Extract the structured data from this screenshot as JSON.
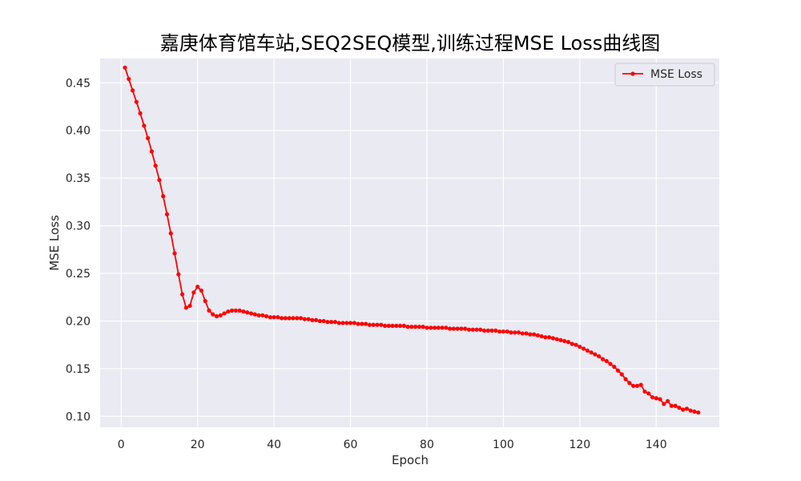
{
  "chart_data": {
    "type": "line",
    "title": "嘉庚体育馆车站,SEQ2SEQ模型,训练过程MSE Loss曲线图",
    "xlabel": "Epoch",
    "ylabel": "MSE Loss",
    "xlim": [
      -5.5,
      156.5
    ],
    "ylim": [
      0.0885,
      0.4755
    ],
    "xticks": [
      0,
      20,
      40,
      60,
      80,
      100,
      120,
      140
    ],
    "yticks": [
      0.1,
      0.15,
      0.2,
      0.25,
      0.3,
      0.35,
      0.4,
      0.45
    ],
    "xtick_labels": [
      "0",
      "20",
      "40",
      "60",
      "80",
      "100",
      "120",
      "140"
    ],
    "ytick_labels": [
      "0.10",
      "0.15",
      "0.20",
      "0.25",
      "0.30",
      "0.35",
      "0.40",
      "0.45"
    ],
    "grid": true,
    "legend_position": "top-right",
    "series": [
      {
        "name": "MSE Loss",
        "color": "#ff0000",
        "marker": "circle",
        "x": [
          1,
          2,
          3,
          4,
          5,
          6,
          7,
          8,
          9,
          10,
          11,
          12,
          13,
          14,
          15,
          16,
          17,
          18,
          19,
          20,
          21,
          22,
          23,
          24,
          25,
          26,
          27,
          28,
          29,
          30,
          31,
          32,
          33,
          34,
          35,
          36,
          37,
          38,
          39,
          40,
          41,
          42,
          43,
          44,
          45,
          46,
          47,
          48,
          49,
          50,
          51,
          52,
          53,
          54,
          55,
          56,
          57,
          58,
          59,
          60,
          61,
          62,
          63,
          64,
          65,
          66,
          67,
          68,
          69,
          70,
          71,
          72,
          73,
          74,
          75,
          76,
          77,
          78,
          79,
          80,
          81,
          82,
          83,
          84,
          85,
          86,
          87,
          88,
          89,
          90,
          91,
          92,
          93,
          94,
          95,
          96,
          97,
          98,
          99,
          100,
          101,
          102,
          103,
          104,
          105,
          106,
          107,
          108,
          109,
          110,
          111,
          112,
          113,
          114,
          115,
          116,
          117,
          118,
          119,
          120,
          121,
          122,
          123,
          124,
          125,
          126,
          127,
          128,
          129,
          130,
          131,
          132,
          133,
          134,
          135,
          136,
          137,
          138,
          139,
          140,
          141,
          142,
          143,
          144,
          145,
          146,
          147,
          148,
          149,
          150,
          151
        ],
        "y": [
          0.466,
          0.454,
          0.442,
          0.43,
          0.418,
          0.405,
          0.392,
          0.378,
          0.363,
          0.348,
          0.331,
          0.312,
          0.292,
          0.271,
          0.249,
          0.228,
          0.214,
          0.216,
          0.23,
          0.236,
          0.232,
          0.221,
          0.211,
          0.207,
          0.205,
          0.206,
          0.208,
          0.21,
          0.211,
          0.211,
          0.211,
          0.21,
          0.209,
          0.208,
          0.207,
          0.206,
          0.206,
          0.205,
          0.204,
          0.204,
          0.204,
          0.203,
          0.203,
          0.203,
          0.203,
          0.203,
          0.203,
          0.202,
          0.202,
          0.201,
          0.201,
          0.2,
          0.2,
          0.199,
          0.199,
          0.199,
          0.198,
          0.198,
          0.198,
          0.198,
          0.198,
          0.197,
          0.197,
          0.197,
          0.196,
          0.196,
          0.196,
          0.196,
          0.195,
          0.195,
          0.195,
          0.195,
          0.195,
          0.195,
          0.194,
          0.194,
          0.194,
          0.194,
          0.194,
          0.193,
          0.193,
          0.193,
          0.193,
          0.193,
          0.193,
          0.192,
          0.192,
          0.192,
          0.192,
          0.192,
          0.191,
          0.191,
          0.191,
          0.191,
          0.19,
          0.19,
          0.19,
          0.19,
          0.189,
          0.189,
          0.189,
          0.188,
          0.188,
          0.188,
          0.187,
          0.187,
          0.186,
          0.186,
          0.185,
          0.184,
          0.183,
          0.183,
          0.182,
          0.181,
          0.18,
          0.179,
          0.178,
          0.176,
          0.175,
          0.173,
          0.171,
          0.169,
          0.167,
          0.165,
          0.163,
          0.16,
          0.158,
          0.155,
          0.152,
          0.148,
          0.144,
          0.139,
          0.135,
          0.132,
          0.132,
          0.133,
          0.126,
          0.124,
          0.12,
          0.119,
          0.118,
          0.113,
          0.116,
          0.111,
          0.111,
          0.109,
          0.107,
          0.108,
          0.106,
          0.105,
          0.104
        ]
      }
    ]
  }
}
